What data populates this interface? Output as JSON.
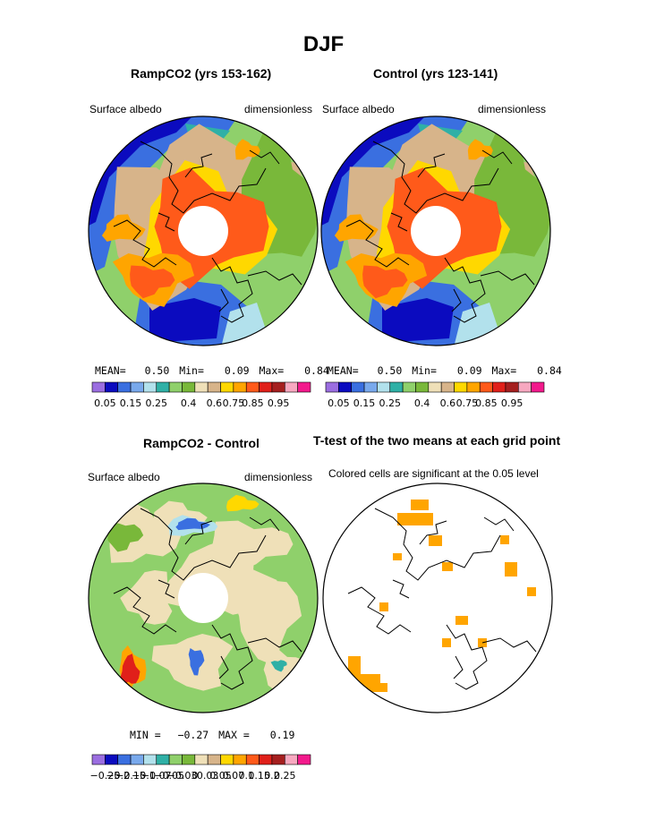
{
  "main_title": "DJF",
  "panels": {
    "p1": {
      "title": "RampCO2 (yrs 153-162)",
      "left_label": "Surface albedo",
      "right_label": "dimensionless"
    },
    "p2": {
      "title": "Control (yrs 123-141)",
      "left_label": "Surface albedo",
      "right_label": "dimensionless"
    },
    "p3": {
      "title": "RampCO2 - Control",
      "left_label": "Surface albedo",
      "right_label": "dimensionless"
    },
    "p4": {
      "title": "T-test of the two means at each grid point",
      "left_label": "Colored cells are significant at the 0.05 level"
    }
  },
  "stats": {
    "p1": {
      "mean_label": "MEAN=",
      "mean": "0.50",
      "min_label": "Min=",
      "min": "0.09",
      "max_label": "Max=",
      "max": "0.84"
    },
    "p2": {
      "mean_label": "MEAN=",
      "mean": "0.50",
      "min_label": "Min=",
      "min": "0.09",
      "max_label": "Max=",
      "max": "0.84"
    },
    "p3": {
      "min_label": "MIN =",
      "min": "−0.27",
      "max_label": "MAX =",
      "max": "0.19"
    }
  },
  "colorbars": {
    "abs": {
      "colors": [
        "#9b6ee0",
        "#0b0bbf",
        "#3a6fe0",
        "#79a9ec",
        "#b2e1ec",
        "#2fb0a6",
        "#8fd06b",
        "#79b83a",
        "#efe0b8",
        "#d7b48a",
        "#ffd800",
        "#ffa500",
        "#ff5a1a",
        "#e0201a",
        "#a51f1f",
        "#f7a8c0",
        "#f21a8c"
      ],
      "ticks": [
        "0.05",
        "0.15",
        "0.25",
        "0.4",
        "0.6",
        "0.75",
        "0.85",
        "0.95"
      ]
    },
    "diff": {
      "colors": [
        "#9b6ee0",
        "#0b0bbf",
        "#3a6fe0",
        "#79a9ec",
        "#b2e1ec",
        "#2fb0a6",
        "#8fd06b",
        "#79b83a",
        "#efe0b8",
        "#d7b48a",
        "#ffd800",
        "#ffa500",
        "#ff5a1a",
        "#e0201a",
        "#a51f1f",
        "#f7a8c0",
        "#f21a8c"
      ],
      "ticks": [
        "−0.25",
        "−0.2",
        "−0.15",
        "−0.1",
        "−0.07",
        "−0.05",
        "−0.03",
        "0",
        "0.03",
        "0.05",
        "0.07",
        "0.1",
        "0.15",
        "0.2",
        "0.25"
      ]
    }
  },
  "map_colors": {
    "ice_high": "#ff5a1a",
    "ice_mid": "#ffa500",
    "ice_low": "#ffd800",
    "tundra": "#d7b48a",
    "forest": "#8fd06b",
    "forest_dark": "#79b83a",
    "ocean_deep": "#3a6fe0",
    "ocean_dark": "#0b0bbf",
    "ocean_light": "#79a9ec",
    "teal": "#2fb0a6",
    "cyan": "#b2e1ec",
    "near_zero": "#efe0b8",
    "significant": "#ffa500",
    "pole_hole": "#ffffff"
  }
}
